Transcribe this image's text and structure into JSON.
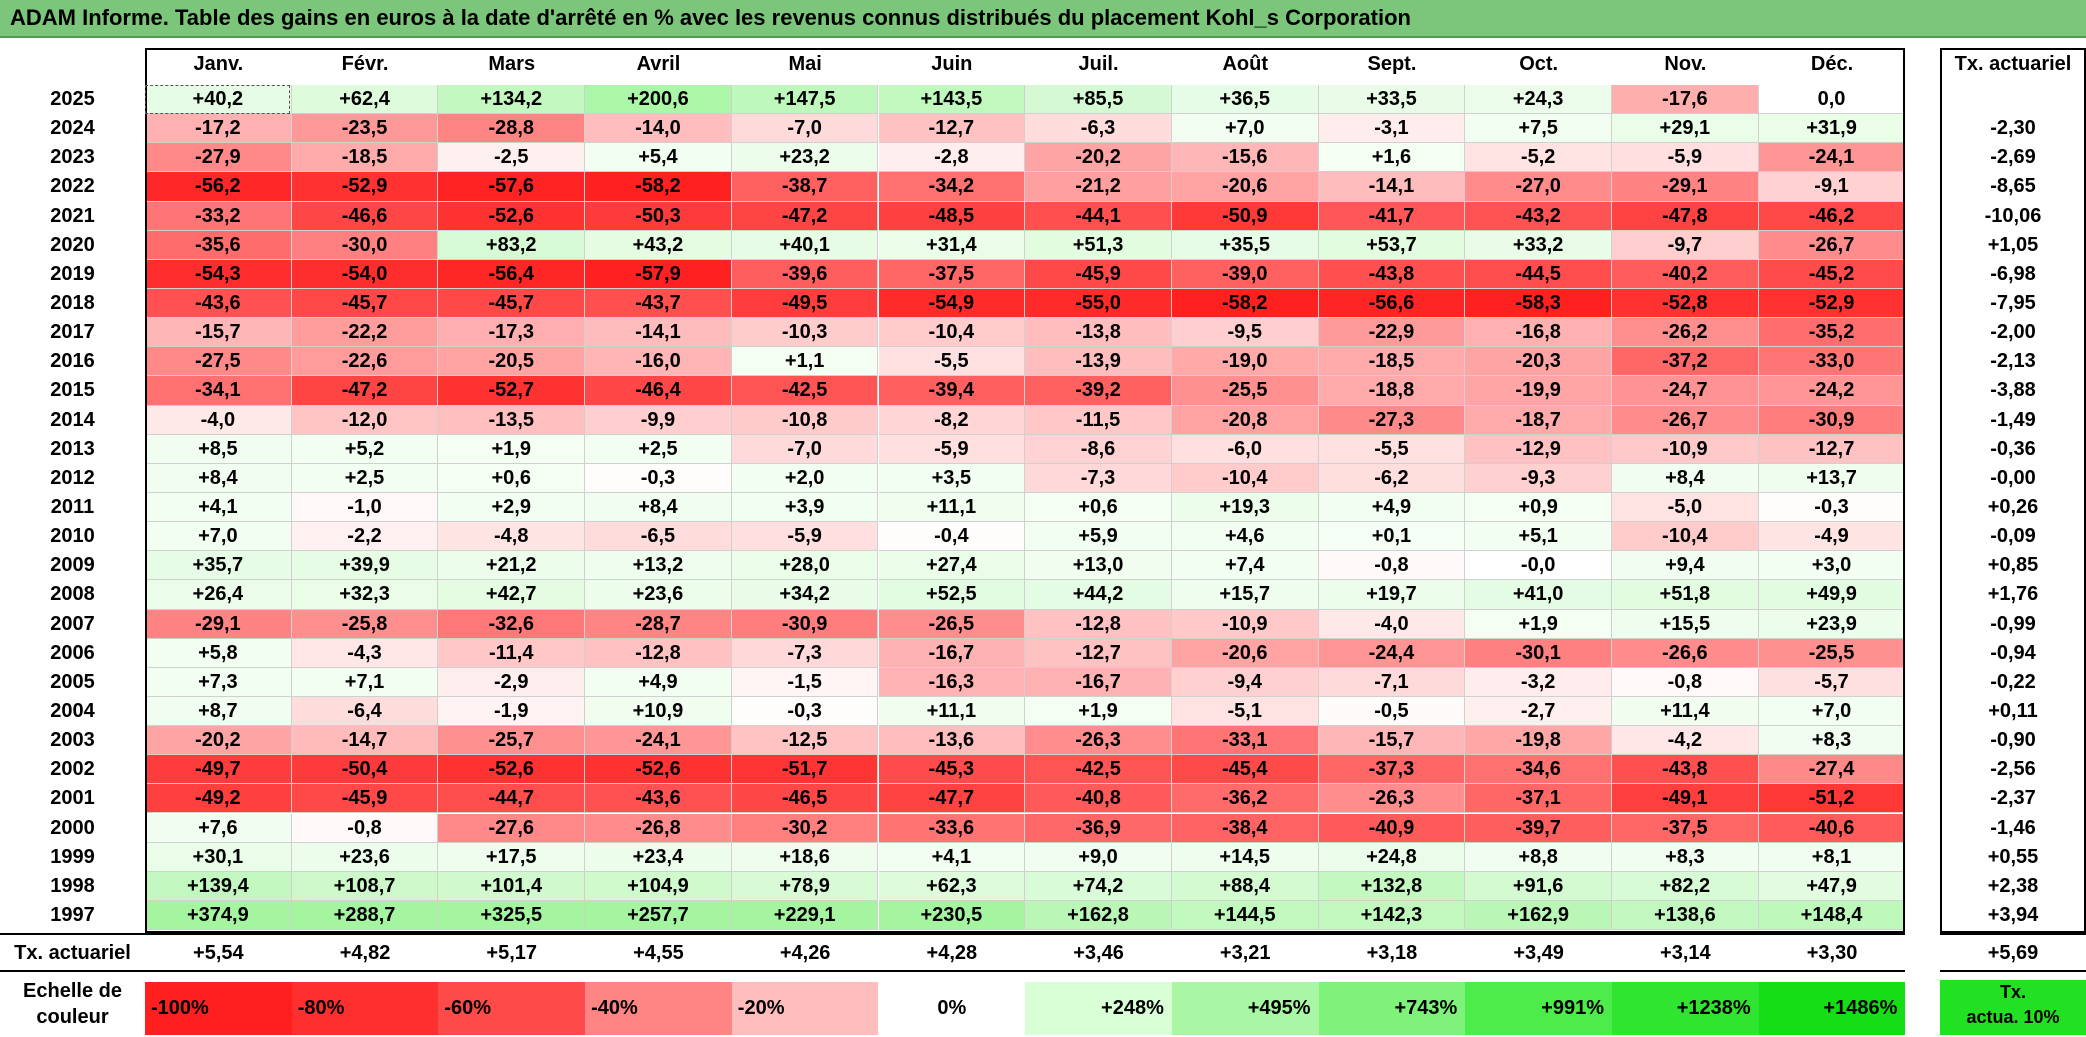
{
  "title": "ADAM Informe. Table des gains en euros à la date d'arrêté en % avec les revenus connus distribués du placement Kohl_s Corporation",
  "months": [
    "Janv.",
    "Févr.",
    "Mars",
    "Avril",
    "Mai",
    "Juin",
    "Juil.",
    "Août",
    "Sept.",
    "Oct.",
    "Nov.",
    "Déc."
  ],
  "annual_header": "Tx. actuariel",
  "rows": [
    {
      "year": "2025",
      "values": [
        "+40,2",
        "+62,4",
        "+134,2",
        "+200,6",
        "+147,5",
        "+143,5",
        "+85,5",
        "+36,5",
        "+33,5",
        "+24,3",
        "-17,6",
        "0,0"
      ],
      "annual": ""
    },
    {
      "year": "2024",
      "values": [
        "-17,2",
        "-23,5",
        "-28,8",
        "-14,0",
        "-7,0",
        "-12,7",
        "-6,3",
        "+7,0",
        "-3,1",
        "+7,5",
        "+29,1",
        "+31,9"
      ],
      "annual": "-2,30"
    },
    {
      "year": "2023",
      "values": [
        "-27,9",
        "-18,5",
        "-2,5",
        "+5,4",
        "+23,2",
        "-2,8",
        "-20,2",
        "-15,6",
        "+1,6",
        "-5,2",
        "-5,9",
        "-24,1"
      ],
      "annual": "-2,69"
    },
    {
      "year": "2022",
      "values": [
        "-56,2",
        "-52,9",
        "-57,6",
        "-58,2",
        "-38,7",
        "-34,2",
        "-21,2",
        "-20,6",
        "-14,1",
        "-27,0",
        "-29,1",
        "-9,1"
      ],
      "annual": "-8,65"
    },
    {
      "year": "2021",
      "values": [
        "-33,2",
        "-46,6",
        "-52,6",
        "-50,3",
        "-47,2",
        "-48,5",
        "-44,1",
        "-50,9",
        "-41,7",
        "-43,2",
        "-47,8",
        "-46,2"
      ],
      "annual": "-10,06"
    },
    {
      "year": "2020",
      "values": [
        "-35,6",
        "-30,0",
        "+83,2",
        "+43,2",
        "+40,1",
        "+31,4",
        "+51,3",
        "+35,5",
        "+53,7",
        "+33,2",
        "-9,7",
        "-26,7"
      ],
      "annual": "+1,05"
    },
    {
      "year": "2019",
      "values": [
        "-54,3",
        "-54,0",
        "-56,4",
        "-57,9",
        "-39,6",
        "-37,5",
        "-45,9",
        "-39,0",
        "-43,8",
        "-44,5",
        "-40,2",
        "-45,2"
      ],
      "annual": "-6,98"
    },
    {
      "year": "2018",
      "values": [
        "-43,6",
        "-45,7",
        "-45,7",
        "-43,7",
        "-49,5",
        "-54,9",
        "-55,0",
        "-58,2",
        "-56,6",
        "-58,3",
        "-52,8",
        "-52,9"
      ],
      "annual": "-7,95"
    },
    {
      "year": "2017",
      "values": [
        "-15,7",
        "-22,2",
        "-17,3",
        "-14,1",
        "-10,3",
        "-10,4",
        "-13,8",
        "-9,5",
        "-22,9",
        "-16,8",
        "-26,2",
        "-35,2"
      ],
      "annual": "-2,00"
    },
    {
      "year": "2016",
      "values": [
        "-27,5",
        "-22,6",
        "-20,5",
        "-16,0",
        "+1,1",
        "-5,5",
        "-13,9",
        "-19,0",
        "-18,5",
        "-20,3",
        "-37,2",
        "-33,0"
      ],
      "annual": "-2,13"
    },
    {
      "year": "2015",
      "values": [
        "-34,1",
        "-47,2",
        "-52,7",
        "-46,4",
        "-42,5",
        "-39,4",
        "-39,2",
        "-25,5",
        "-18,8",
        "-19,9",
        "-24,7",
        "-24,2"
      ],
      "annual": "-3,88"
    },
    {
      "year": "2014",
      "values": [
        "-4,0",
        "-12,0",
        "-13,5",
        "-9,9",
        "-10,8",
        "-8,2",
        "-11,5",
        "-20,8",
        "-27,3",
        "-18,7",
        "-26,7",
        "-30,9"
      ],
      "annual": "-1,49"
    },
    {
      "year": "2013",
      "values": [
        "+8,5",
        "+5,2",
        "+1,9",
        "+2,5",
        "-7,0",
        "-5,9",
        "-8,6",
        "-6,0",
        "-5,5",
        "-12,9",
        "-10,9",
        "-12,7"
      ],
      "annual": "-0,36"
    },
    {
      "year": "2012",
      "values": [
        "+8,4",
        "+2,5",
        "+0,6",
        "-0,3",
        "+2,0",
        "+3,5",
        "-7,3",
        "-10,4",
        "-6,2",
        "-9,3",
        "+8,4",
        "+13,7"
      ],
      "annual": "-0,00"
    },
    {
      "year": "2011",
      "values": [
        "+4,1",
        "-1,0",
        "+2,9",
        "+8,4",
        "+3,9",
        "+11,1",
        "+0,6",
        "+19,3",
        "+4,9",
        "+0,9",
        "-5,0",
        "-0,3"
      ],
      "annual": "+0,26"
    },
    {
      "year": "2010",
      "values": [
        "+7,0",
        "-2,2",
        "-4,8",
        "-6,5",
        "-5,9",
        "-0,4",
        "+5,9",
        "+4,6",
        "+0,1",
        "+5,1",
        "-10,4",
        "-4,9"
      ],
      "annual": "-0,09"
    },
    {
      "year": "2009",
      "values": [
        "+35,7",
        "+39,9",
        "+21,2",
        "+13,2",
        "+28,0",
        "+27,4",
        "+13,0",
        "+7,4",
        "-0,8",
        "-0,0",
        "+9,4",
        "+3,0"
      ],
      "annual": "+0,85"
    },
    {
      "year": "2008",
      "values": [
        "+26,4",
        "+32,3",
        "+42,7",
        "+23,6",
        "+34,2",
        "+52,5",
        "+44,2",
        "+15,7",
        "+19,7",
        "+41,0",
        "+51,8",
        "+49,9"
      ],
      "annual": "+1,76"
    },
    {
      "year": "2007",
      "values": [
        "-29,1",
        "-25,8",
        "-32,6",
        "-28,7",
        "-30,9",
        "-26,5",
        "-12,8",
        "-10,9",
        "-4,0",
        "+1,9",
        "+15,5",
        "+23,9"
      ],
      "annual": "-0,99"
    },
    {
      "year": "2006",
      "values": [
        "+5,8",
        "-4,3",
        "-11,4",
        "-12,8",
        "-7,3",
        "-16,7",
        "-12,7",
        "-20,6",
        "-24,4",
        "-30,1",
        "-26,6",
        "-25,5"
      ],
      "annual": "-0,94"
    },
    {
      "year": "2005",
      "values": [
        "+7,3",
        "+7,1",
        "-2,9",
        "+4,9",
        "-1,5",
        "-16,3",
        "-16,7",
        "-9,4",
        "-7,1",
        "-3,2",
        "-0,8",
        "-5,7"
      ],
      "annual": "-0,22"
    },
    {
      "year": "2004",
      "values": [
        "+8,7",
        "-6,4",
        "-1,9",
        "+10,9",
        "-0,3",
        "+11,1",
        "+1,9",
        "-5,1",
        "-0,5",
        "-2,7",
        "+11,4",
        "+7,0"
      ],
      "annual": "+0,11"
    },
    {
      "year": "2003",
      "values": [
        "-20,2",
        "-14,7",
        "-25,7",
        "-24,1",
        "-12,5",
        "-13,6",
        "-26,3",
        "-33,1",
        "-15,7",
        "-19,8",
        "-4,2",
        "+8,3"
      ],
      "annual": "-0,90"
    },
    {
      "year": "2002",
      "values": [
        "-49,7",
        "-50,4",
        "-52,6",
        "-52,6",
        "-51,7",
        "-45,3",
        "-42,5",
        "-45,4",
        "-37,3",
        "-34,6",
        "-43,8",
        "-27,4"
      ],
      "annual": "-2,56"
    },
    {
      "year": "2001",
      "values": [
        "-49,2",
        "-45,9",
        "-44,7",
        "-43,6",
        "-46,5",
        "-47,7",
        "-40,8",
        "-36,2",
        "-26,3",
        "-37,1",
        "-49,1",
        "-51,2"
      ],
      "annual": "-2,37"
    },
    {
      "year": "2000",
      "values": [
        "+7,6",
        "-0,8",
        "-27,6",
        "-26,8",
        "-30,2",
        "-33,6",
        "-36,9",
        "-38,4",
        "-40,9",
        "-39,7",
        "-37,5",
        "-40,6"
      ],
      "annual": "-1,46"
    },
    {
      "year": "1999",
      "values": [
        "+30,1",
        "+23,6",
        "+17,5",
        "+23,4",
        "+18,6",
        "+4,1",
        "+9,0",
        "+14,5",
        "+24,8",
        "+8,8",
        "+8,3",
        "+8,1"
      ],
      "annual": "+0,55"
    },
    {
      "year": "1998",
      "values": [
        "+139,4",
        "+108,7",
        "+101,4",
        "+104,9",
        "+78,9",
        "+62,3",
        "+74,2",
        "+88,4",
        "+132,8",
        "+91,6",
        "+82,2",
        "+47,9"
      ],
      "annual": "+2,38"
    },
    {
      "year": "1997",
      "values": [
        "+374,9",
        "+288,7",
        "+325,5",
        "+257,7",
        "+229,1",
        "+230,5",
        "+162,8",
        "+144,5",
        "+142,3",
        "+162,9",
        "+138,6",
        "+148,4"
      ],
      "annual": "+3,94"
    }
  ],
  "tx_row": {
    "label": "Tx. actuariel",
    "values": [
      "+5,54",
      "+4,82",
      "+5,17",
      "+4,55",
      "+4,26",
      "+4,28",
      "+3,46",
      "+3,21",
      "+3,18",
      "+3,49",
      "+3,14",
      "+3,30"
    ],
    "annual": "+5,69"
  },
  "scale": {
    "label_line1": "Echelle de",
    "label_line2": "couleur",
    "steps": [
      {
        "label": "-100%",
        "color": "#ff1f1f"
      },
      {
        "label": "-80%",
        "color": "#ff2f2f"
      },
      {
        "label": "-60%",
        "color": "#ff4a4a"
      },
      {
        "label": "-40%",
        "color": "#ff8585"
      },
      {
        "label": "-20%",
        "color": "#ffbdbd"
      },
      {
        "label": "0%",
        "color": "#ffffff"
      },
      {
        "label": "+248%",
        "color": "#d8ffd6"
      },
      {
        "label": "+495%",
        "color": "#a9f7a4"
      },
      {
        "label": "+743%",
        "color": "#7ef27a"
      },
      {
        "label": "+991%",
        "color": "#4eec4b"
      },
      {
        "label": "+1238%",
        "color": "#2fe52f"
      },
      {
        "label": "+1486%",
        "color": "#16de16"
      }
    ],
    "annual_legend_line1": "Tx.",
    "annual_legend_line2": "actua. 10%"
  }
}
